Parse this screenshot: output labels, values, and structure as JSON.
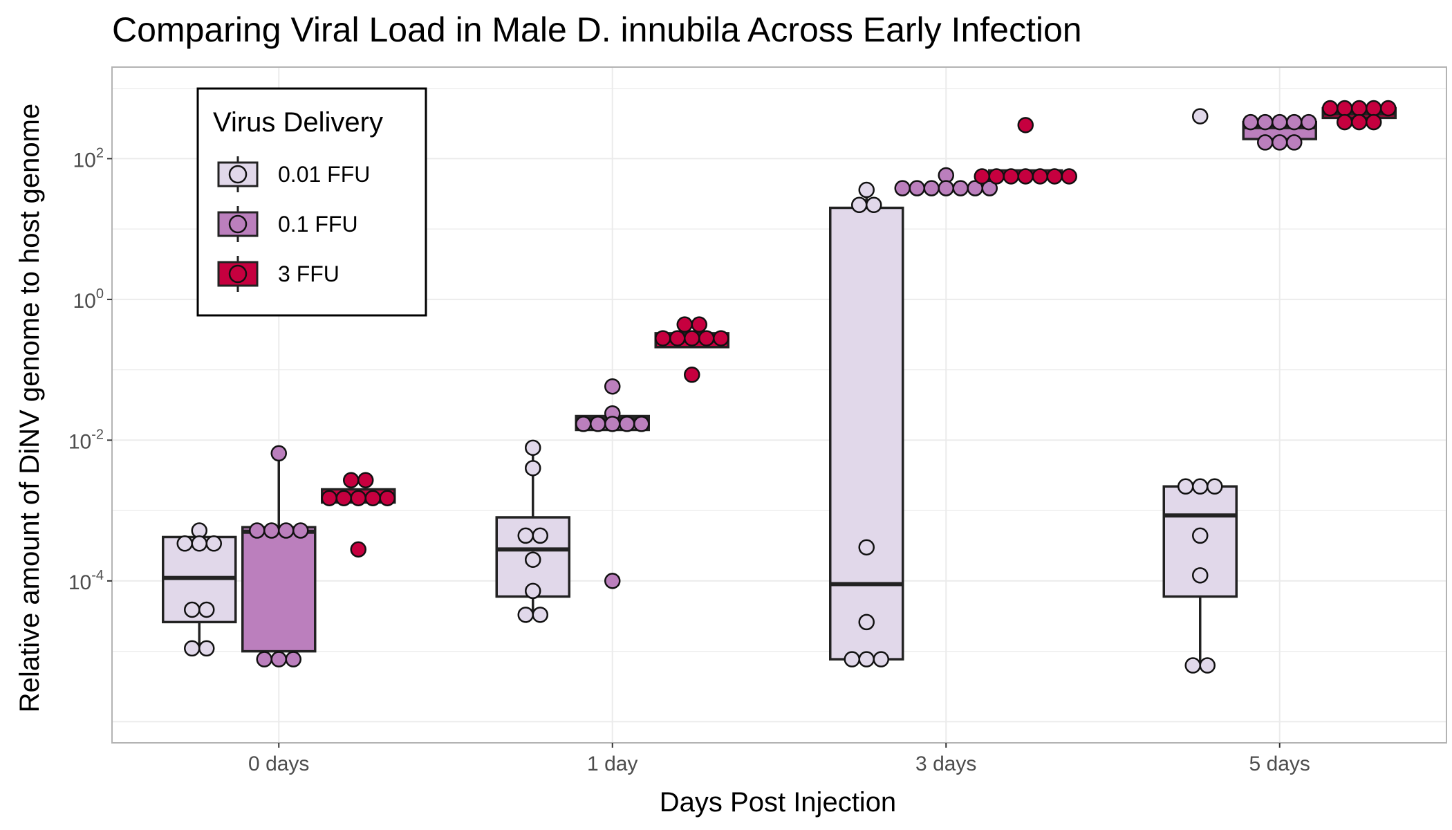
{
  "chart_data": {
    "type": "box",
    "title": "Comparing Viral Load in Male D. innubila Across Early Infection",
    "xlabel": "Days Post Injection",
    "ylabel": "Relative amount of DiNV genome to host genome",
    "y_scale": "log10",
    "ylim": [
      5e-07,
      2000
    ],
    "y_ticks": [
      {
        "base": "10",
        "exp": "-4",
        "value": 0.0001
      },
      {
        "base": "10",
        "exp": "-2",
        "value": 0.01
      },
      {
        "base": "10",
        "exp": "0",
        "value": 1
      },
      {
        "base": "10",
        "exp": "2",
        "value": 100
      }
    ],
    "categories": [
      "0 days",
      "1 day",
      "3 days",
      "5 days"
    ],
    "grid": true,
    "legend": {
      "title": "Virus Delivery",
      "position": "top-left-inside",
      "entries": [
        "0.01 FFU",
        "0.1 FFU",
        "3 FFU"
      ]
    },
    "colors": {
      "0.01 FFU": "#e1d8ea",
      "0.1 FFU": "#bb7fbd",
      "3 FFU": "#c6003f"
    },
    "series": [
      {
        "name": "0.01 FFU",
        "boxes": [
          {
            "category": "0 days",
            "q1": 2.6e-05,
            "median": 0.00011,
            "q3": 0.00042,
            "whisker_low": 1.1e-05,
            "whisker_high": 0.00042,
            "points": [
              0.00052,
              0.00034,
              0.00034,
              0.00034,
              3.9e-05,
              3.9e-05,
              1.1e-05,
              1.1e-05
            ]
          },
          {
            "category": "1 day",
            "q1": 6e-05,
            "median": 0.00028,
            "q3": 0.0008,
            "whisker_low": 3.3e-05,
            "whisker_high": 0.0078,
            "points": [
              0.0078,
              0.004,
              0.00044,
              0.00044,
              0.0002,
              7.2e-05,
              3.3e-05,
              3.3e-05
            ]
          },
          {
            "category": "3 days",
            "q1": 7.7e-06,
            "median": 9e-05,
            "q3": 20,
            "whisker_low": 7.7e-06,
            "whisker_high": 36,
            "points": [
              36,
              22,
              22,
              0.0003,
              2.6e-05,
              7.7e-06,
              7.7e-06,
              7.7e-06
            ]
          },
          {
            "category": "5 days",
            "q1": 6e-05,
            "median": 0.00085,
            "q3": 0.0022,
            "whisker_low": 6.3e-06,
            "whisker_high": 0.0022,
            "points": [
              400,
              0.0022,
              0.0022,
              0.0022,
              0.00044,
              0.00012,
              6.3e-06,
              6.3e-06
            ]
          }
        ]
      },
      {
        "name": "0.1 FFU",
        "boxes": [
          {
            "category": "0 days",
            "q1": 1e-05,
            "median": 0.0005,
            "q3": 0.00058,
            "whisker_low": 1e-05,
            "whisker_high": 0.0065,
            "points": [
              0.0065,
              0.00052,
              0.00052,
              0.00052,
              0.00052,
              7.7e-06,
              7.7e-06,
              7.7e-06
            ]
          },
          {
            "category": "1 day",
            "q1": 0.014,
            "median": 0.02,
            "q3": 0.022,
            "whisker_low": 0.014,
            "whisker_high": 0.022,
            "points": [
              0.058,
              0.024,
              0.017,
              0.017,
              0.017,
              0.017,
              0.017,
              0.0001
            ]
          },
          {
            "category": "3 days",
            "q1": 38,
            "median": 38,
            "q3": 38,
            "whisker_low": 38,
            "whisker_high": 38,
            "points": [
              58,
              38,
              38,
              38,
              38,
              38,
              38,
              38
            ]
          },
          {
            "category": "5 days",
            "q1": 190,
            "median": 280,
            "q3": 330,
            "whisker_low": 190,
            "whisker_high": 330,
            "points": [
              330,
              330,
              330,
              330,
              330,
              170,
              170,
              170
            ]
          }
        ]
      },
      {
        "name": "3 FFU",
        "boxes": [
          {
            "category": "0 days",
            "q1": 0.0013,
            "median": 0.0016,
            "q3": 0.002,
            "whisker_low": 0.0012,
            "whisker_high": 0.002,
            "points": [
              0.0027,
              0.0027,
              0.0015,
              0.0015,
              0.0015,
              0.0015,
              0.0015,
              0.00028
            ]
          },
          {
            "category": "1 day",
            "q1": 0.21,
            "median": 0.26,
            "q3": 0.33,
            "whisker_low": 0.21,
            "whisker_high": 0.33,
            "points": [
              0.44,
              0.44,
              0.28,
              0.28,
              0.28,
              0.28,
              0.28,
              0.085
            ]
          },
          {
            "category": "3 days",
            "q1": 56,
            "median": 58,
            "q3": 68,
            "whisker_low": 56,
            "whisker_high": 68,
            "points": [
              300,
              56,
              56,
              56,
              56,
              56,
              56,
              56
            ]
          },
          {
            "category": "5 days",
            "q1": 380,
            "median": 440,
            "q3": 520,
            "whisker_low": 380,
            "whisker_high": 520,
            "points": [
              520,
              520,
              520,
              520,
              520,
              330,
              330,
              330
            ]
          }
        ]
      }
    ]
  }
}
